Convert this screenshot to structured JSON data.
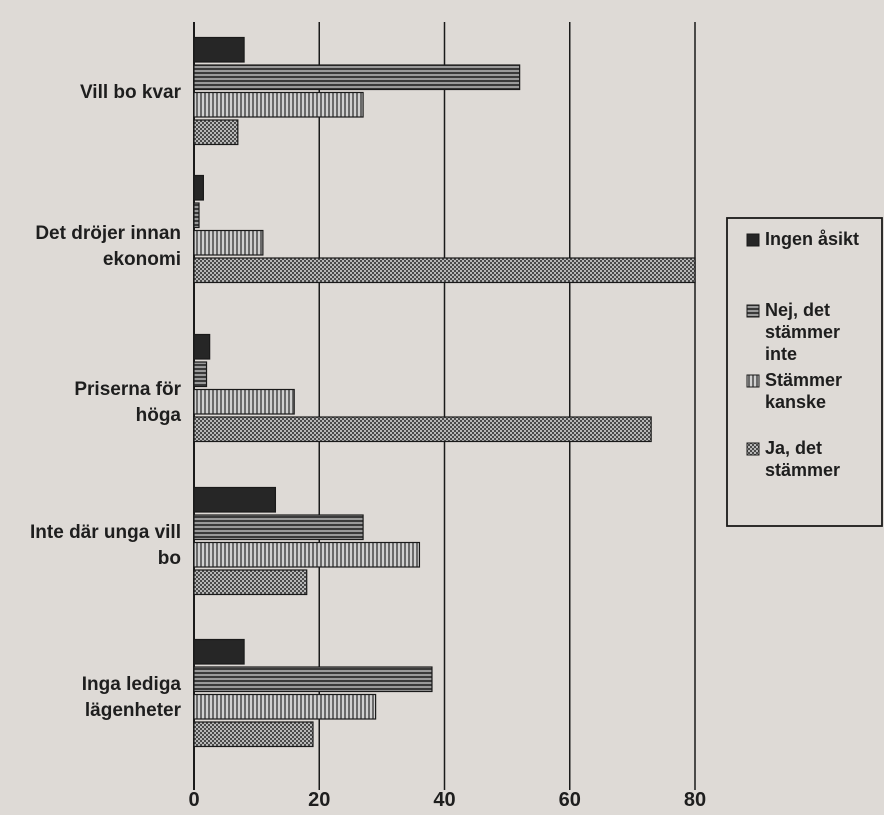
{
  "chart_data": {
    "type": "bar",
    "orientation": "horizontal",
    "categories": [
      [
        "Vill bo kvar"
      ],
      [
        "Det dröjer innan",
        "ekonomi"
      ],
      [
        "Priserna för",
        "höga"
      ],
      [
        "Inte där unga vill",
        "bo"
      ],
      [
        "Inga lediga",
        "lägenheter"
      ]
    ],
    "series": [
      {
        "name": [
          "Ingen åsikt"
        ],
        "values": [
          8,
          1.5,
          2.5,
          13,
          8
        ],
        "fill": "#262626",
        "pattern": "solid"
      },
      {
        "name": [
          "Nej, det",
          "stämmer",
          "inte"
        ],
        "values": [
          52,
          0.8,
          2,
          27,
          38
        ],
        "fill": "#6b6b6b",
        "pattern": "hstripe"
      },
      {
        "name": [
          "Stämmer",
          "kanske"
        ],
        "values": [
          27,
          11,
          16,
          36,
          29
        ],
        "fill": "#a5a5a5",
        "pattern": "vstripe"
      },
      {
        "name": [
          "Ja, det",
          "stämmer"
        ],
        "values": [
          7,
          80,
          73,
          18,
          19
        ],
        "fill": "#8a8a8a",
        "pattern": "dots"
      }
    ],
    "xlim": [
      0,
      80
    ],
    "xticks": [
      0,
      20,
      40,
      60,
      80
    ],
    "grid": true,
    "legend_position": "right",
    "colors": {
      "background": "#dedad6",
      "grid": "#1a1a1a",
      "text": "#1e1e1e"
    }
  }
}
